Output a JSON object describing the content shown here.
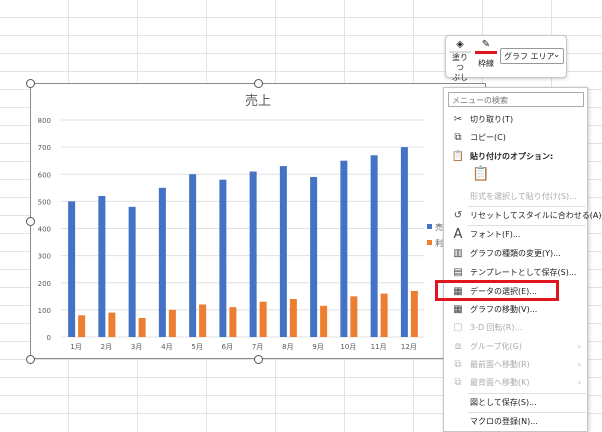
{
  "chart_data": {
    "type": "bar",
    "title": "売上",
    "categories": [
      "1月",
      "2月",
      "3月",
      "4月",
      "5月",
      "6月",
      "7月",
      "8月",
      "9月",
      "10月",
      "11月",
      "12月"
    ],
    "series": [
      {
        "name": "売",
        "values": [
          500,
          520,
          480,
          550,
          600,
          580,
          610,
          630,
          590,
          650,
          670,
          700
        ],
        "color": "#4472C4"
      },
      {
        "name": "利",
        "values": [
          80,
          90,
          70,
          100,
          120,
          110,
          130,
          140,
          115,
          150,
          160,
          170
        ],
        "color": "#ED7D31"
      }
    ],
    "ylim": [
      0,
      800
    ],
    "yticks": [
      0,
      100,
      200,
      300,
      400,
      500,
      600,
      700,
      800
    ],
    "grid": true,
    "legend": "right"
  },
  "mini_toolbar": {
    "fill_label_1": "塗りつ",
    "fill_label_2": "ぶし",
    "outline_label": "枠線",
    "element_select": "グラフ エリア"
  },
  "menu": {
    "search_placeholder": "メニューの検索",
    "items": [
      {
        "label": "切り取り(T)",
        "icon": "scissors-icon"
      },
      {
        "label": "コピー(C)",
        "icon": "copy-icon"
      },
      {
        "label": "貼り付けのオプション:",
        "icon": "paste-icon"
      },
      {
        "label": "形式を選択して貼り付け(S)...",
        "disabled": true
      },
      {
        "label": "リセットしてスタイルに合わせる(A)",
        "icon": "reset-icon"
      },
      {
        "label": "フォント(F)...",
        "icon": "font-icon"
      },
      {
        "label": "グラフの種類の変更(Y)...",
        "icon": "chart-type-icon"
      },
      {
        "label": "テンプレートとして保存(S)...",
        "icon": "template-icon"
      },
      {
        "label": "データの選択(E)...",
        "icon": "select-data-icon",
        "highlighted": true
      },
      {
        "label": "グラフの移動(V)...",
        "icon": "move-chart-icon"
      },
      {
        "label": "3-D 回転(R)...",
        "icon": "3d-rotate-icon",
        "disabled": true
      },
      {
        "label": "グループ化(G)",
        "icon": "group-icon",
        "disabled": true
      },
      {
        "label": "最前面へ移動(R)",
        "icon": "bring-front-icon",
        "disabled": true
      },
      {
        "label": "最背面へ移動(K)",
        "icon": "send-back-icon",
        "disabled": true
      },
      {
        "label": "図として保存(S)..."
      },
      {
        "label": "マクロの登録(N)..."
      }
    ]
  },
  "colors": {
    "highlight": "#e0161e",
    "outline_red": "#e0161e"
  }
}
